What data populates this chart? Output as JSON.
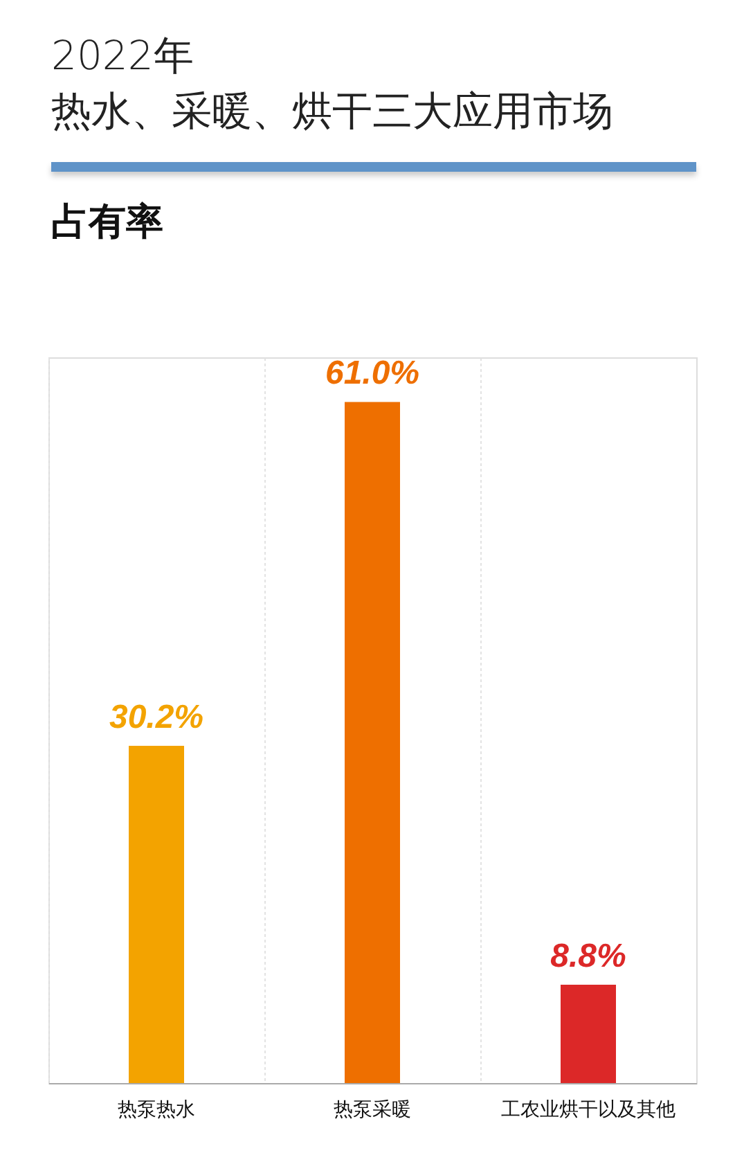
{
  "chart_data": {
    "type": "bar",
    "title": "2022年",
    "subtitle": "热水、采暖、烘干三大应用市场",
    "annotations": [
      "占有率"
    ],
    "categories": [
      "热泵热水",
      "热泵采暖",
      "工农业烘干以及其他"
    ],
    "values": [
      30.2,
      61.0,
      8.8
    ],
    "colors": [
      "#f3a300",
      "#ee6f00",
      "#dc2828"
    ],
    "value_labels": [
      "30.2%",
      "61.0%",
      "8.8%"
    ],
    "grid": "x"
  }
}
